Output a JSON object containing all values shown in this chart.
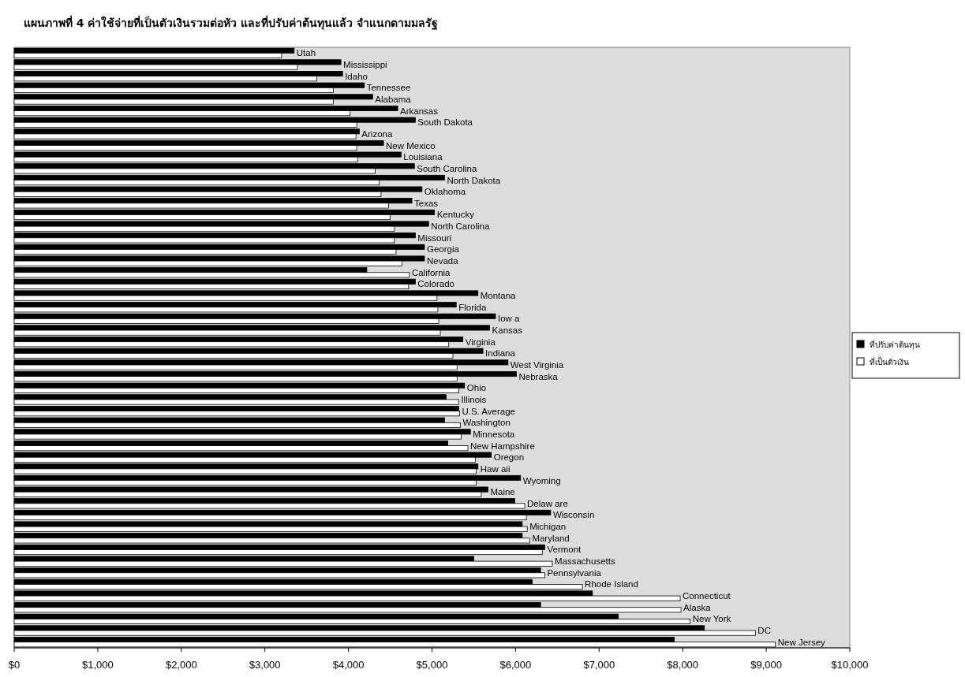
{
  "chart_data": {
    "type": "bar",
    "orientation": "horizontal",
    "title": "แผนภาพที่ 4 ค่าใช้จ่ายที่เป็นตัวเงินรวมต่อหัว และที่ปรับค่าต้นทุนแล้ว จำแนกตามมลรัฐ",
    "categories": [
      "Utah",
      "Mississippi",
      "Idaho",
      "Tennessee",
      "Alabama",
      "Arkansas",
      "South Dakota",
      "Arizona",
      "New Mexico",
      "Louisiana",
      "South Carolina",
      "North Dakota",
      "Oklahoma",
      "Texas",
      "Kentucky",
      "North Carolina",
      "Missouri",
      "Georgia",
      "Nevada",
      "California",
      "Colorado",
      "Montana",
      "Florida",
      "Iow a",
      "Kansas",
      "Virginia",
      "Indiana",
      "West Virginia",
      "Nebraska",
      "Ohio",
      "Illinois",
      "U.S. Average",
      "Washington",
      "Minnesota",
      "New Hampshire",
      "Oregon",
      "Haw aii",
      "Wyoming",
      "Maine",
      "Delaw are",
      "Wisconsin",
      "Michigan",
      "Maryland",
      "Vermont",
      "Massachusetts",
      "Pennsylvania",
      "Rhode Island",
      "Connecticut",
      "Alaska",
      "New York",
      "DC",
      "New Jersey"
    ],
    "series": [
      {
        "name": "ที่ปรับค่าต้นทุน",
        "color": "#000000",
        "values": [
          3350,
          3910,
          3930,
          4190,
          4290,
          4590,
          4800,
          4130,
          4420,
          4630,
          4790,
          5150,
          4880,
          4760,
          5030,
          4960,
          4800,
          4910,
          4910,
          4220,
          4800,
          5550,
          5290,
          5760,
          5690,
          5370,
          5610,
          5910,
          6010,
          5390,
          5170,
          5320,
          5150,
          5460,
          5190,
          5710,
          5550,
          6060,
          5670,
          5990,
          6420,
          6080,
          6080,
          6350,
          5500,
          6300,
          6200,
          6920,
          6300,
          7230,
          8260,
          7900
        ]
      },
      {
        "name": "ที่เป็นตัวเงิน",
        "color": "#ffffff",
        "values": [
          3200,
          3390,
          3620,
          3820,
          3820,
          4020,
          4100,
          4090,
          4100,
          4110,
          4320,
          4370,
          4390,
          4480,
          4500,
          4550,
          4550,
          4570,
          4640,
          4730,
          4720,
          5060,
          5070,
          5080,
          5100,
          5200,
          5250,
          5300,
          5300,
          5320,
          5320,
          5330,
          5340,
          5350,
          5430,
          5520,
          5530,
          5530,
          5590,
          6110,
          6130,
          6140,
          6170,
          6320,
          6440,
          6350,
          6800,
          7970,
          7980,
          8090,
          8870,
          9110
        ]
      }
    ],
    "xlim": [
      0,
      10000
    ],
    "xticks": [
      {
        "value": 0,
        "label": "$0"
      },
      {
        "value": 1000,
        "label": "$1,000"
      },
      {
        "value": 2000,
        "label": "$2,000"
      },
      {
        "value": 3000,
        "label": "$3,000"
      },
      {
        "value": 4000,
        "label": "$4,000"
      },
      {
        "value": 5000,
        "label": "$5,000"
      },
      {
        "value": 6000,
        "label": "$6,000"
      },
      {
        "value": 7000,
        "label": "$7,000"
      },
      {
        "value": 8000,
        "label": "$8,000"
      },
      {
        "value": 9000,
        "label": "$9,000"
      },
      {
        "value": 10000,
        "label": "$10,000"
      }
    ],
    "legend": "right"
  }
}
